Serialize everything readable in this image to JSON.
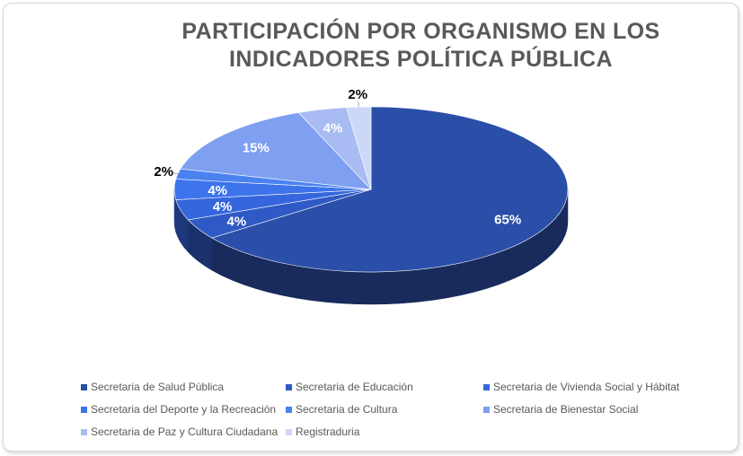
{
  "chart_data": {
    "type": "pie",
    "title_lines": [
      "PARTICIPACIÓN POR ORGANISMO EN LOS",
      "INDICADORES POLÍTICA PÚBLICA"
    ],
    "slices": [
      {
        "label": "Secretaria de Salud Pública",
        "value": 65,
        "display": "65%",
        "color": "#2b4fa8"
      },
      {
        "label": "Secretaria de Educación",
        "value": 4,
        "display": "4%",
        "color": "#2f59c4"
      },
      {
        "label": "Secretaria de Vivienda Social y Hábitat",
        "value": 4,
        "display": "4%",
        "color": "#3566dd"
      },
      {
        "label": "Secretaria del Deporte y la Recreación",
        "value": 4,
        "display": "4%",
        "color": "#3d74ec"
      },
      {
        "label": "Secretaria de Cultura",
        "value": 2,
        "display": "2%",
        "color": "#4a82f0"
      },
      {
        "label": "Secretaria de Bienestar Social",
        "value": 15,
        "display": "15%",
        "color": "#7f9ff0"
      },
      {
        "label": "Secretaria de Paz y Cultura Ciudadana",
        "value": 4,
        "display": "4%",
        "color": "#a8bcf3"
      },
      {
        "label": "Registraduria",
        "value": 2,
        "display": "2%",
        "color": "#cdd8f8"
      }
    ],
    "legend_position": "bottom"
  }
}
